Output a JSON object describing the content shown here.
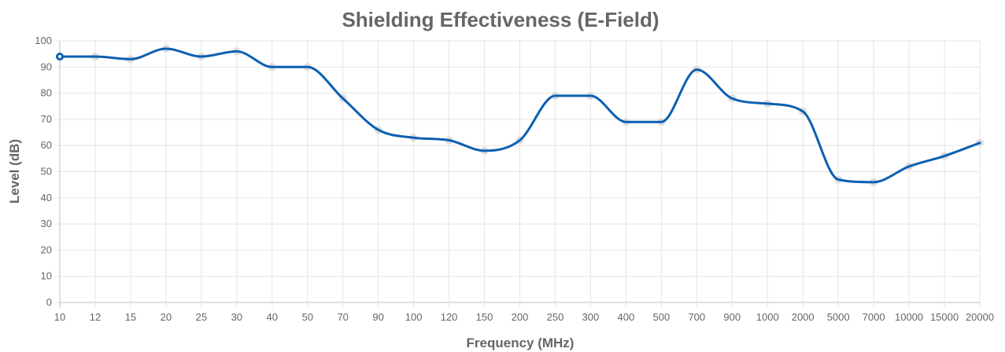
{
  "chart_data": {
    "type": "line",
    "title": "Shielding Effectiveness (E-Field)",
    "xlabel": "Frequency (MHz)",
    "ylabel": "Level (dB)",
    "categories": [
      "10",
      "12",
      "15",
      "20",
      "25",
      "30",
      "40",
      "50",
      "70",
      "90",
      "100",
      "120",
      "150",
      "200",
      "250",
      "300",
      "400",
      "500",
      "700",
      "900",
      "1000",
      "2000",
      "5000",
      "7000",
      "10000",
      "15000",
      "20000"
    ],
    "series": [
      {
        "values": [
          94,
          94,
          93,
          97,
          94,
          96,
          90,
          90,
          78,
          66,
          63,
          62,
          58,
          62,
          79,
          79,
          69,
          69,
          89,
          78,
          76,
          73,
          47,
          46,
          52,
          56,
          61
        ],
        "color": "#0b5fb3"
      }
    ],
    "ylim": [
      0,
      100
    ],
    "yticks": [
      "0",
      "10",
      "20",
      "30",
      "40",
      "50",
      "60",
      "70",
      "80",
      "90",
      "100"
    ],
    "grid": true,
    "legend": "none"
  }
}
